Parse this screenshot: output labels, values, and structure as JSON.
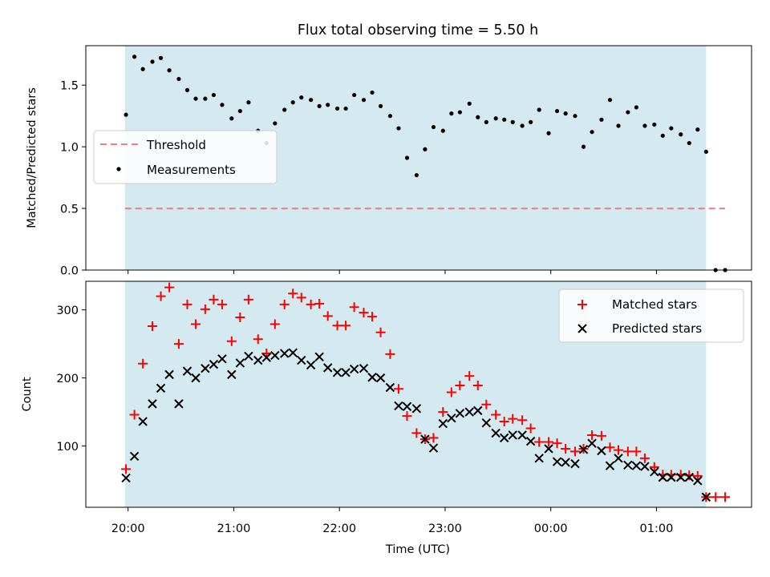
{
  "chart_data": {
    "type": "scatter",
    "title": "Flux total observing time = 5.50 h",
    "xlabel": "Time (UTC)",
    "x_ticks": [
      "20:00",
      "21:00",
      "22:00",
      "23:00",
      "00:00",
      "01:00"
    ],
    "x_range_hours": [
      19.6,
      25.9
    ],
    "observing_window_hours": [
      19.97,
      25.47
    ],
    "shade_color": "#d4eaf0",
    "panels": [
      {
        "ylabel": "Matched/Predicted stars",
        "ylim": [
          0,
          1.82
        ],
        "yticks": [
          0.0,
          0.5,
          1.0,
          1.5
        ],
        "legend": "center-left",
        "threshold": {
          "name": "Threshold",
          "value": 0.5,
          "x": [
            19.97,
            25.65
          ],
          "color": "#f08080"
        },
        "series": [
          {
            "name": "Measurements",
            "color": "#000000",
            "marker": "dot",
            "x": [
              19.98,
              20.06,
              20.14,
              20.23,
              20.31,
              20.39,
              20.48,
              20.56,
              20.64,
              20.73,
              20.81,
              20.89,
              20.98,
              21.06,
              21.14,
              21.23,
              21.31,
              21.39,
              21.48,
              21.56,
              21.64,
              21.73,
              21.81,
              21.89,
              21.98,
              22.06,
              22.14,
              22.23,
              22.31,
              22.39,
              22.48,
              22.56,
              22.64,
              22.73,
              22.81,
              22.89,
              22.98,
              23.06,
              23.14,
              23.23,
              23.31,
              23.39,
              23.48,
              23.56,
              23.64,
              23.73,
              23.81,
              23.89,
              23.98,
              24.06,
              24.14,
              24.23,
              24.31,
              24.39,
              24.48,
              24.56,
              24.64,
              24.73,
              24.81,
              24.89,
              24.98,
              25.06,
              25.14,
              25.23,
              25.31,
              25.39,
              25.47,
              25.56,
              25.65
            ],
            "y": [
              1.26,
              1.73,
              1.63,
              1.69,
              1.72,
              1.62,
              1.55,
              1.46,
              1.39,
              1.39,
              1.42,
              1.34,
              1.23,
              1.29,
              1.36,
              1.13,
              1.03,
              1.19,
              1.3,
              1.36,
              1.4,
              1.38,
              1.33,
              1.34,
              1.31,
              1.31,
              1.42,
              1.38,
              1.44,
              1.33,
              1.25,
              1.15,
              0.91,
              0.77,
              0.98,
              1.16,
              1.13,
              1.27,
              1.28,
              1.35,
              1.24,
              1.2,
              1.23,
              1.22,
              1.2,
              1.17,
              1.2,
              1.3,
              1.11,
              1.29,
              1.27,
              1.25,
              1.0,
              1.12,
              1.22,
              1.38,
              1.17,
              1.28,
              1.32,
              1.17,
              1.18,
              1.09,
              1.15,
              1.1,
              1.03,
              1.14,
              0.96,
              0.0,
              0.0
            ]
          }
        ]
      },
      {
        "ylabel": "Count",
        "ylim": [
          10,
          342
        ],
        "yticks": [
          100,
          200,
          300
        ],
        "legend": "top-right",
        "series": [
          {
            "name": "Matched stars",
            "color": "#ff0000",
            "marker": "plus",
            "x": [
              19.98,
              20.06,
              20.14,
              20.23,
              20.31,
              20.39,
              20.48,
              20.56,
              20.64,
              20.73,
              20.81,
              20.89,
              20.98,
              21.06,
              21.14,
              21.23,
              21.31,
              21.39,
              21.48,
              21.56,
              21.64,
              21.73,
              21.81,
              21.89,
              21.98,
              22.06,
              22.14,
              22.23,
              22.31,
              22.39,
              22.48,
              22.56,
              22.64,
              22.73,
              22.81,
              22.89,
              22.98,
              23.06,
              23.14,
              23.23,
              23.31,
              23.39,
              23.48,
              23.56,
              23.64,
              23.73,
              23.81,
              23.89,
              23.98,
              24.06,
              24.14,
              24.23,
              24.31,
              24.39,
              24.48,
              24.56,
              24.64,
              24.73,
              24.81,
              24.89,
              24.98,
              25.06,
              25.14,
              25.23,
              25.31,
              25.39,
              25.47,
              25.56,
              25.65
            ],
            "y": [
              66,
              146,
              221,
              276,
              320,
              333,
              250,
              308,
              279,
              301,
              315,
              308,
              254,
              289,
              315,
              257,
              236,
              279,
              308,
              324,
              318,
              308,
              309,
              291,
              277,
              277,
              304,
              296,
              290,
              267,
              235,
              184,
              144,
              119,
              110,
              112,
              150,
              179,
              189,
              203,
              189,
              161,
              146,
              136,
              140,
              138,
              126,
              106,
              106,
              104,
              96,
              92,
              96,
              116,
              115,
              98,
              94,
              92,
              92,
              82,
              69,
              58,
              58,
              58,
              57,
              56,
              25,
              25,
              25
            ]
          },
          {
            "name": "Predicted stars",
            "color": "#000000",
            "marker": "x",
            "x": [
              19.98,
              20.06,
              20.14,
              20.23,
              20.31,
              20.39,
              20.48,
              20.56,
              20.64,
              20.73,
              20.81,
              20.89,
              20.98,
              21.06,
              21.14,
              21.23,
              21.31,
              21.39,
              21.48,
              21.56,
              21.64,
              21.73,
              21.81,
              21.89,
              21.98,
              22.06,
              22.14,
              22.23,
              22.31,
              22.39,
              22.48,
              22.56,
              22.64,
              22.73,
              22.81,
              22.89,
              22.98,
              23.06,
              23.14,
              23.23,
              23.31,
              23.39,
              23.48,
              23.56,
              23.64,
              23.73,
              23.81,
              23.89,
              23.98,
              24.06,
              24.14,
              24.23,
              24.31,
              24.39,
              24.48,
              24.56,
              24.64,
              24.73,
              24.81,
              24.89,
              24.98,
              25.06,
              25.14,
              25.23,
              25.31,
              25.39,
              25.47
            ],
            "y": [
              53,
              85,
              136,
              162,
              185,
              205,
              162,
              210,
              200,
              214,
              220,
              228,
              205,
              222,
              232,
              226,
              230,
              233,
              236,
              237,
              226,
              219,
              231,
              215,
              208,
              208,
              213,
              214,
              201,
              200,
              186,
              159,
              158,
              155,
              110,
              97,
              133,
              141,
              148,
              150,
              152,
              134,
              119,
              112,
              116,
              116,
              107,
              82,
              96,
              77,
              76,
              74,
              95,
              104,
              93,
              71,
              82,
              72,
              71,
              70,
              62,
              54,
              54,
              54,
              54,
              49,
              25
            ]
          }
        ]
      }
    ]
  }
}
